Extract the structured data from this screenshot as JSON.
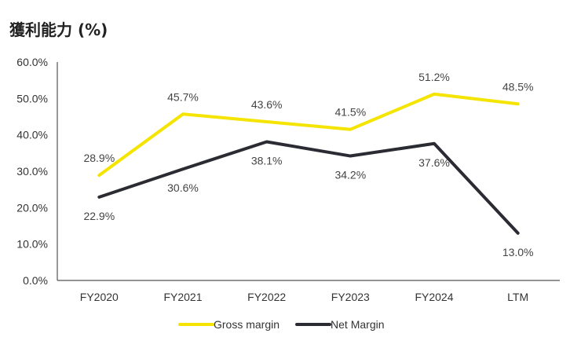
{
  "chart_data": {
    "type": "line",
    "title": "獲利能力 (%)",
    "categories": [
      "FY2020",
      "FY2021",
      "FY2022",
      "FY2023",
      "FY2024",
      "LTM"
    ],
    "ylim": [
      0,
      60
    ],
    "yticks": [
      "0.0%",
      "10.0%",
      "20.0%",
      "30.0%",
      "40.0%",
      "50.0%",
      "60.0%"
    ],
    "ytick_values": [
      0,
      10,
      20,
      30,
      40,
      50,
      60
    ],
    "grid": false,
    "legend_position": "bottom",
    "series": [
      {
        "name": "Gross margin",
        "color": "#F5E400",
        "values": [
          28.9,
          45.7,
          43.6,
          41.5,
          51.2,
          48.5
        ],
        "labels": [
          "28.9%",
          "45.7%",
          "43.6%",
          "41.5%",
          "51.2%",
          "48.5%"
        ],
        "label_side": "above"
      },
      {
        "name": "Net Margin",
        "color": "#2B2B33",
        "values": [
          22.9,
          30.6,
          38.1,
          34.2,
          37.6,
          13.0
        ],
        "labels": [
          "22.9%",
          "30.6%",
          "38.1%",
          "34.2%",
          "37.6%",
          "13.0%"
        ],
        "label_side": "below"
      }
    ]
  }
}
